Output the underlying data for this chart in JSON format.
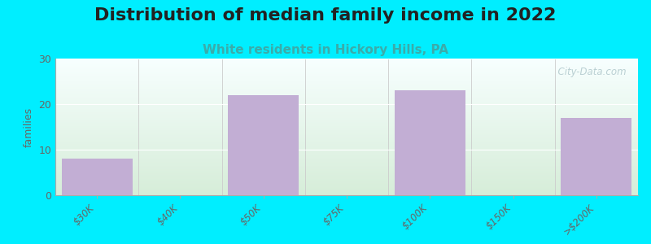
{
  "title": "Distribution of median family income in 2022",
  "subtitle": "White residents in Hickory Hills, PA",
  "categories": [
    "$30K",
    "$40K",
    "$50K",
    "$75K",
    "$100K",
    "$150K",
    ">$200K"
  ],
  "values": [
    8,
    0,
    22,
    0,
    23,
    0,
    17
  ],
  "bar_color": "#c2aed4",
  "ylabel": "families",
  "ylim": [
    0,
    30
  ],
  "yticks": [
    0,
    10,
    20,
    30
  ],
  "background_outer": "#00eeff",
  "plot_bg_left": "#d6edd8",
  "plot_bg_right": "#f5fbf6",
  "plot_bg_top": "#f8feff",
  "plot_bg_bottom": "#d6edd8",
  "title_fontsize": 16,
  "subtitle_fontsize": 11,
  "subtitle_color": "#3aacaa",
  "watermark": "  City-Data.com",
  "watermark_color": "#b0c8cc"
}
